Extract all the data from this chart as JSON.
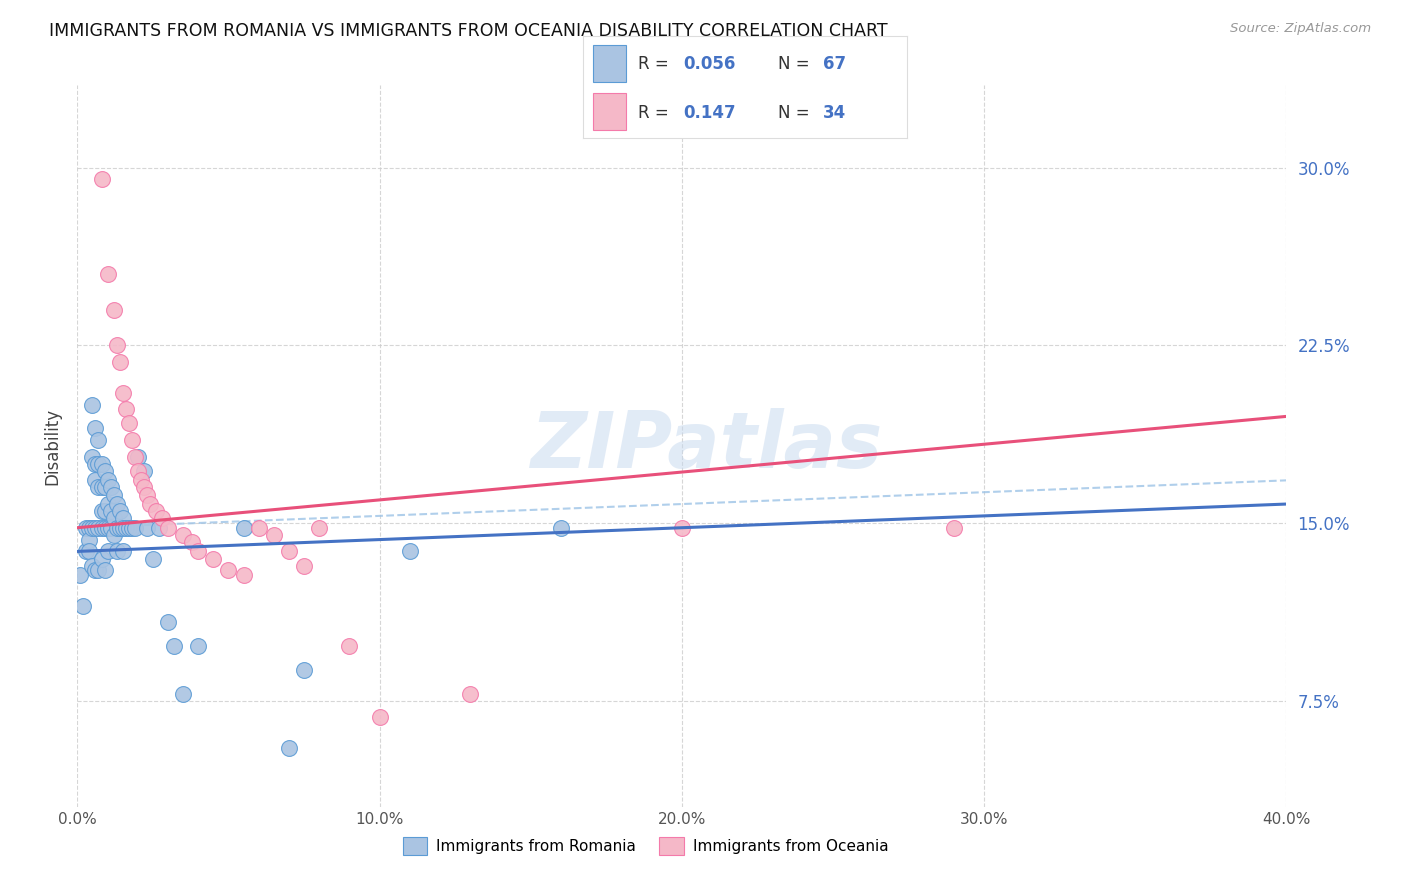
{
  "title": "IMMIGRANTS FROM ROMANIA VS IMMIGRANTS FROM OCEANIA DISABILITY CORRELATION CHART",
  "source": "Source: ZipAtlas.com",
  "ylabel": "Disability",
  "yticks": [
    "7.5%",
    "15.0%",
    "22.5%",
    "30.0%"
  ],
  "ytick_vals": [
    0.075,
    0.15,
    0.225,
    0.3
  ],
  "xlim": [
    0.0,
    0.4
  ],
  "ylim": [
    0.03,
    0.335
  ],
  "xtick_vals": [
    0.0,
    0.1,
    0.2,
    0.3,
    0.4
  ],
  "xtick_labels": [
    "0.0%",
    "10.0%",
    "20.0%",
    "30.0%",
    "40.0%"
  ],
  "legend_r1": "R = 0.056",
  "legend_n1": "N = 67",
  "legend_r2": "R = 0.147",
  "legend_n2": "N = 34",
  "romania_color": "#aac4e2",
  "oceania_color": "#f5b8c8",
  "romania_edge_color": "#5b9bd5",
  "oceania_edge_color": "#f47aaa",
  "romania_line_color": "#4472c4",
  "oceania_line_color": "#e8507a",
  "dashed_line_color": "#9dc3e6",
  "watermark": "ZIPatlas",
  "romania_x": [
    0.001,
    0.002,
    0.003,
    0.003,
    0.004,
    0.004,
    0.004,
    0.005,
    0.005,
    0.005,
    0.005,
    0.006,
    0.006,
    0.006,
    0.006,
    0.006,
    0.007,
    0.007,
    0.007,
    0.007,
    0.007,
    0.008,
    0.008,
    0.008,
    0.008,
    0.008,
    0.009,
    0.009,
    0.009,
    0.009,
    0.009,
    0.01,
    0.01,
    0.01,
    0.01,
    0.011,
    0.011,
    0.011,
    0.012,
    0.012,
    0.012,
    0.013,
    0.013,
    0.013,
    0.014,
    0.014,
    0.015,
    0.015,
    0.015,
    0.016,
    0.017,
    0.018,
    0.019,
    0.02,
    0.022,
    0.023,
    0.025,
    0.027,
    0.03,
    0.032,
    0.035,
    0.04,
    0.055,
    0.07,
    0.075,
    0.11,
    0.16
  ],
  "romania_y": [
    0.128,
    0.115,
    0.148,
    0.138,
    0.148,
    0.143,
    0.138,
    0.2,
    0.178,
    0.148,
    0.132,
    0.19,
    0.175,
    0.168,
    0.148,
    0.13,
    0.185,
    0.175,
    0.165,
    0.148,
    0.13,
    0.175,
    0.165,
    0.155,
    0.148,
    0.135,
    0.172,
    0.165,
    0.155,
    0.148,
    0.13,
    0.168,
    0.158,
    0.148,
    0.138,
    0.165,
    0.155,
    0.148,
    0.162,
    0.152,
    0.145,
    0.158,
    0.148,
    0.138,
    0.155,
    0.148,
    0.152,
    0.148,
    0.138,
    0.148,
    0.148,
    0.148,
    0.148,
    0.178,
    0.172,
    0.148,
    0.135,
    0.148,
    0.108,
    0.098,
    0.078,
    0.098,
    0.148,
    0.055,
    0.088,
    0.138,
    0.148
  ],
  "oceania_x": [
    0.008,
    0.01,
    0.012,
    0.013,
    0.014,
    0.015,
    0.016,
    0.017,
    0.018,
    0.019,
    0.02,
    0.021,
    0.022,
    0.023,
    0.024,
    0.026,
    0.028,
    0.03,
    0.035,
    0.038,
    0.04,
    0.045,
    0.05,
    0.055,
    0.06,
    0.065,
    0.07,
    0.075,
    0.08,
    0.09,
    0.1,
    0.13,
    0.2,
    0.29
  ],
  "oceania_y": [
    0.295,
    0.255,
    0.24,
    0.225,
    0.218,
    0.205,
    0.198,
    0.192,
    0.185,
    0.178,
    0.172,
    0.168,
    0.165,
    0.162,
    0.158,
    0.155,
    0.152,
    0.148,
    0.145,
    0.142,
    0.138,
    0.135,
    0.13,
    0.128,
    0.148,
    0.145,
    0.138,
    0.132,
    0.148,
    0.098,
    0.068,
    0.078,
    0.148,
    0.148
  ],
  "trend_x_start": 0.0,
  "trend_x_end": 0.4,
  "romania_trend_y_start": 0.138,
  "romania_trend_y_end": 0.158,
  "oceania_trend_y_start": 0.148,
  "oceania_trend_y_end": 0.195,
  "dashed_trend_y_start": 0.148,
  "dashed_trend_y_end": 0.168
}
